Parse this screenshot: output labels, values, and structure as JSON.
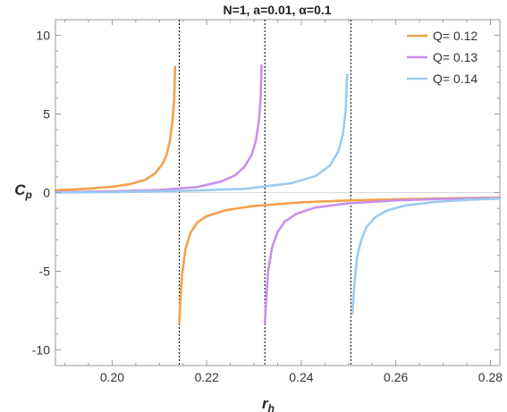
{
  "chart_data": {
    "type": "line",
    "title": "N=1, a=0.01, α=0.1",
    "xlabel": "r",
    "xlabel_sub": "h",
    "ylabel": "C",
    "ylabel_sub": "p",
    "xlim": [
      0.188,
      0.282
    ],
    "ylim": [
      -11,
      11
    ],
    "x_ticks": [
      {
        "value": 0.2,
        "label": "0.20"
      },
      {
        "value": 0.22,
        "label": "0.22"
      },
      {
        "value": 0.24,
        "label": "0.24"
      },
      {
        "value": 0.26,
        "label": "0.26"
      },
      {
        "value": 0.28,
        "label": "0.28"
      }
    ],
    "y_ticks": [
      {
        "value": 10,
        "label": "10"
      },
      {
        "value": 5,
        "label": "5"
      },
      {
        "value": 0,
        "label": "0"
      },
      {
        "value": -5,
        "label": "-5"
      },
      {
        "value": -10,
        "label": "-10"
      }
    ],
    "grid": false,
    "legend_position": "top-right",
    "asymptotes": [
      0.2142,
      0.2323,
      0.2505
    ],
    "series": [
      {
        "name": "Q= 0.12",
        "color": "#f5a04a",
        "segments": [
          {
            "x": [
              0.188,
              0.195,
              0.2,
              0.204,
              0.207,
              0.209,
              0.2105,
              0.2115,
              0.2122,
              0.2127,
              0.2131,
              0.2133
            ],
            "y": [
              0.15,
              0.25,
              0.37,
              0.55,
              0.82,
              1.2,
              1.75,
              2.4,
              3.3,
              4.4,
              5.8,
              8.0
            ]
          },
          {
            "x": [
              0.2142,
              0.2144,
              0.2148,
              0.2155,
              0.2165,
              0.218,
              0.22,
              0.224,
              0.23,
              0.24,
              0.25,
              0.26,
              0.27,
              0.282
            ],
            "y": [
              -8.3,
              -7.0,
              -5.2,
              -3.6,
              -2.6,
              -1.9,
              -1.5,
              -1.12,
              -0.85,
              -0.62,
              -0.5,
              -0.42,
              -0.37,
              -0.32
            ]
          }
        ]
      },
      {
        "name": "Q= 0.13",
        "color": "#c990ea",
        "segments": [
          {
            "x": [
              0.188,
              0.2,
              0.21,
              0.218,
              0.223,
              0.226,
              0.228,
              0.2295,
              0.2304,
              0.231,
              0.2314,
              0.2316
            ],
            "y": [
              0.03,
              0.08,
              0.17,
              0.35,
              0.7,
              1.1,
              1.65,
              2.4,
              3.3,
              4.5,
              6.0,
              8.1
            ]
          },
          {
            "x": [
              0.2323,
              0.2326,
              0.233,
              0.2338,
              0.235,
              0.2365,
              0.239,
              0.243,
              0.25,
              0.26,
              0.27,
              0.282
            ],
            "y": [
              -8.3,
              -6.7,
              -5.0,
              -3.5,
              -2.5,
              -1.85,
              -1.35,
              -0.95,
              -0.68,
              -0.5,
              -0.4,
              -0.34
            ]
          }
        ]
      },
      {
        "name": "Q= 0.14",
        "color": "#9dcaf0",
        "segments": [
          {
            "x": [
              0.188,
              0.2,
              0.215,
              0.228,
              0.238,
              0.243,
              0.246,
              0.2478,
              0.2488,
              0.2494,
              0.2497
            ],
            "y": [
              0.0,
              0.03,
              0.1,
              0.24,
              0.6,
              1.05,
              1.7,
              2.6,
              3.7,
              5.2,
              7.5
            ]
          },
          {
            "x": [
              0.2508,
              0.2512,
              0.2518,
              0.2527,
              0.2538,
              0.2555,
              0.258,
              0.262,
              0.268,
              0.275,
              0.282
            ],
            "y": [
              -7.7,
              -5.9,
              -4.1,
              -3.0,
              -2.2,
              -1.6,
              -1.15,
              -0.82,
              -0.6,
              -0.46,
              -0.38
            ]
          }
        ]
      }
    ]
  }
}
